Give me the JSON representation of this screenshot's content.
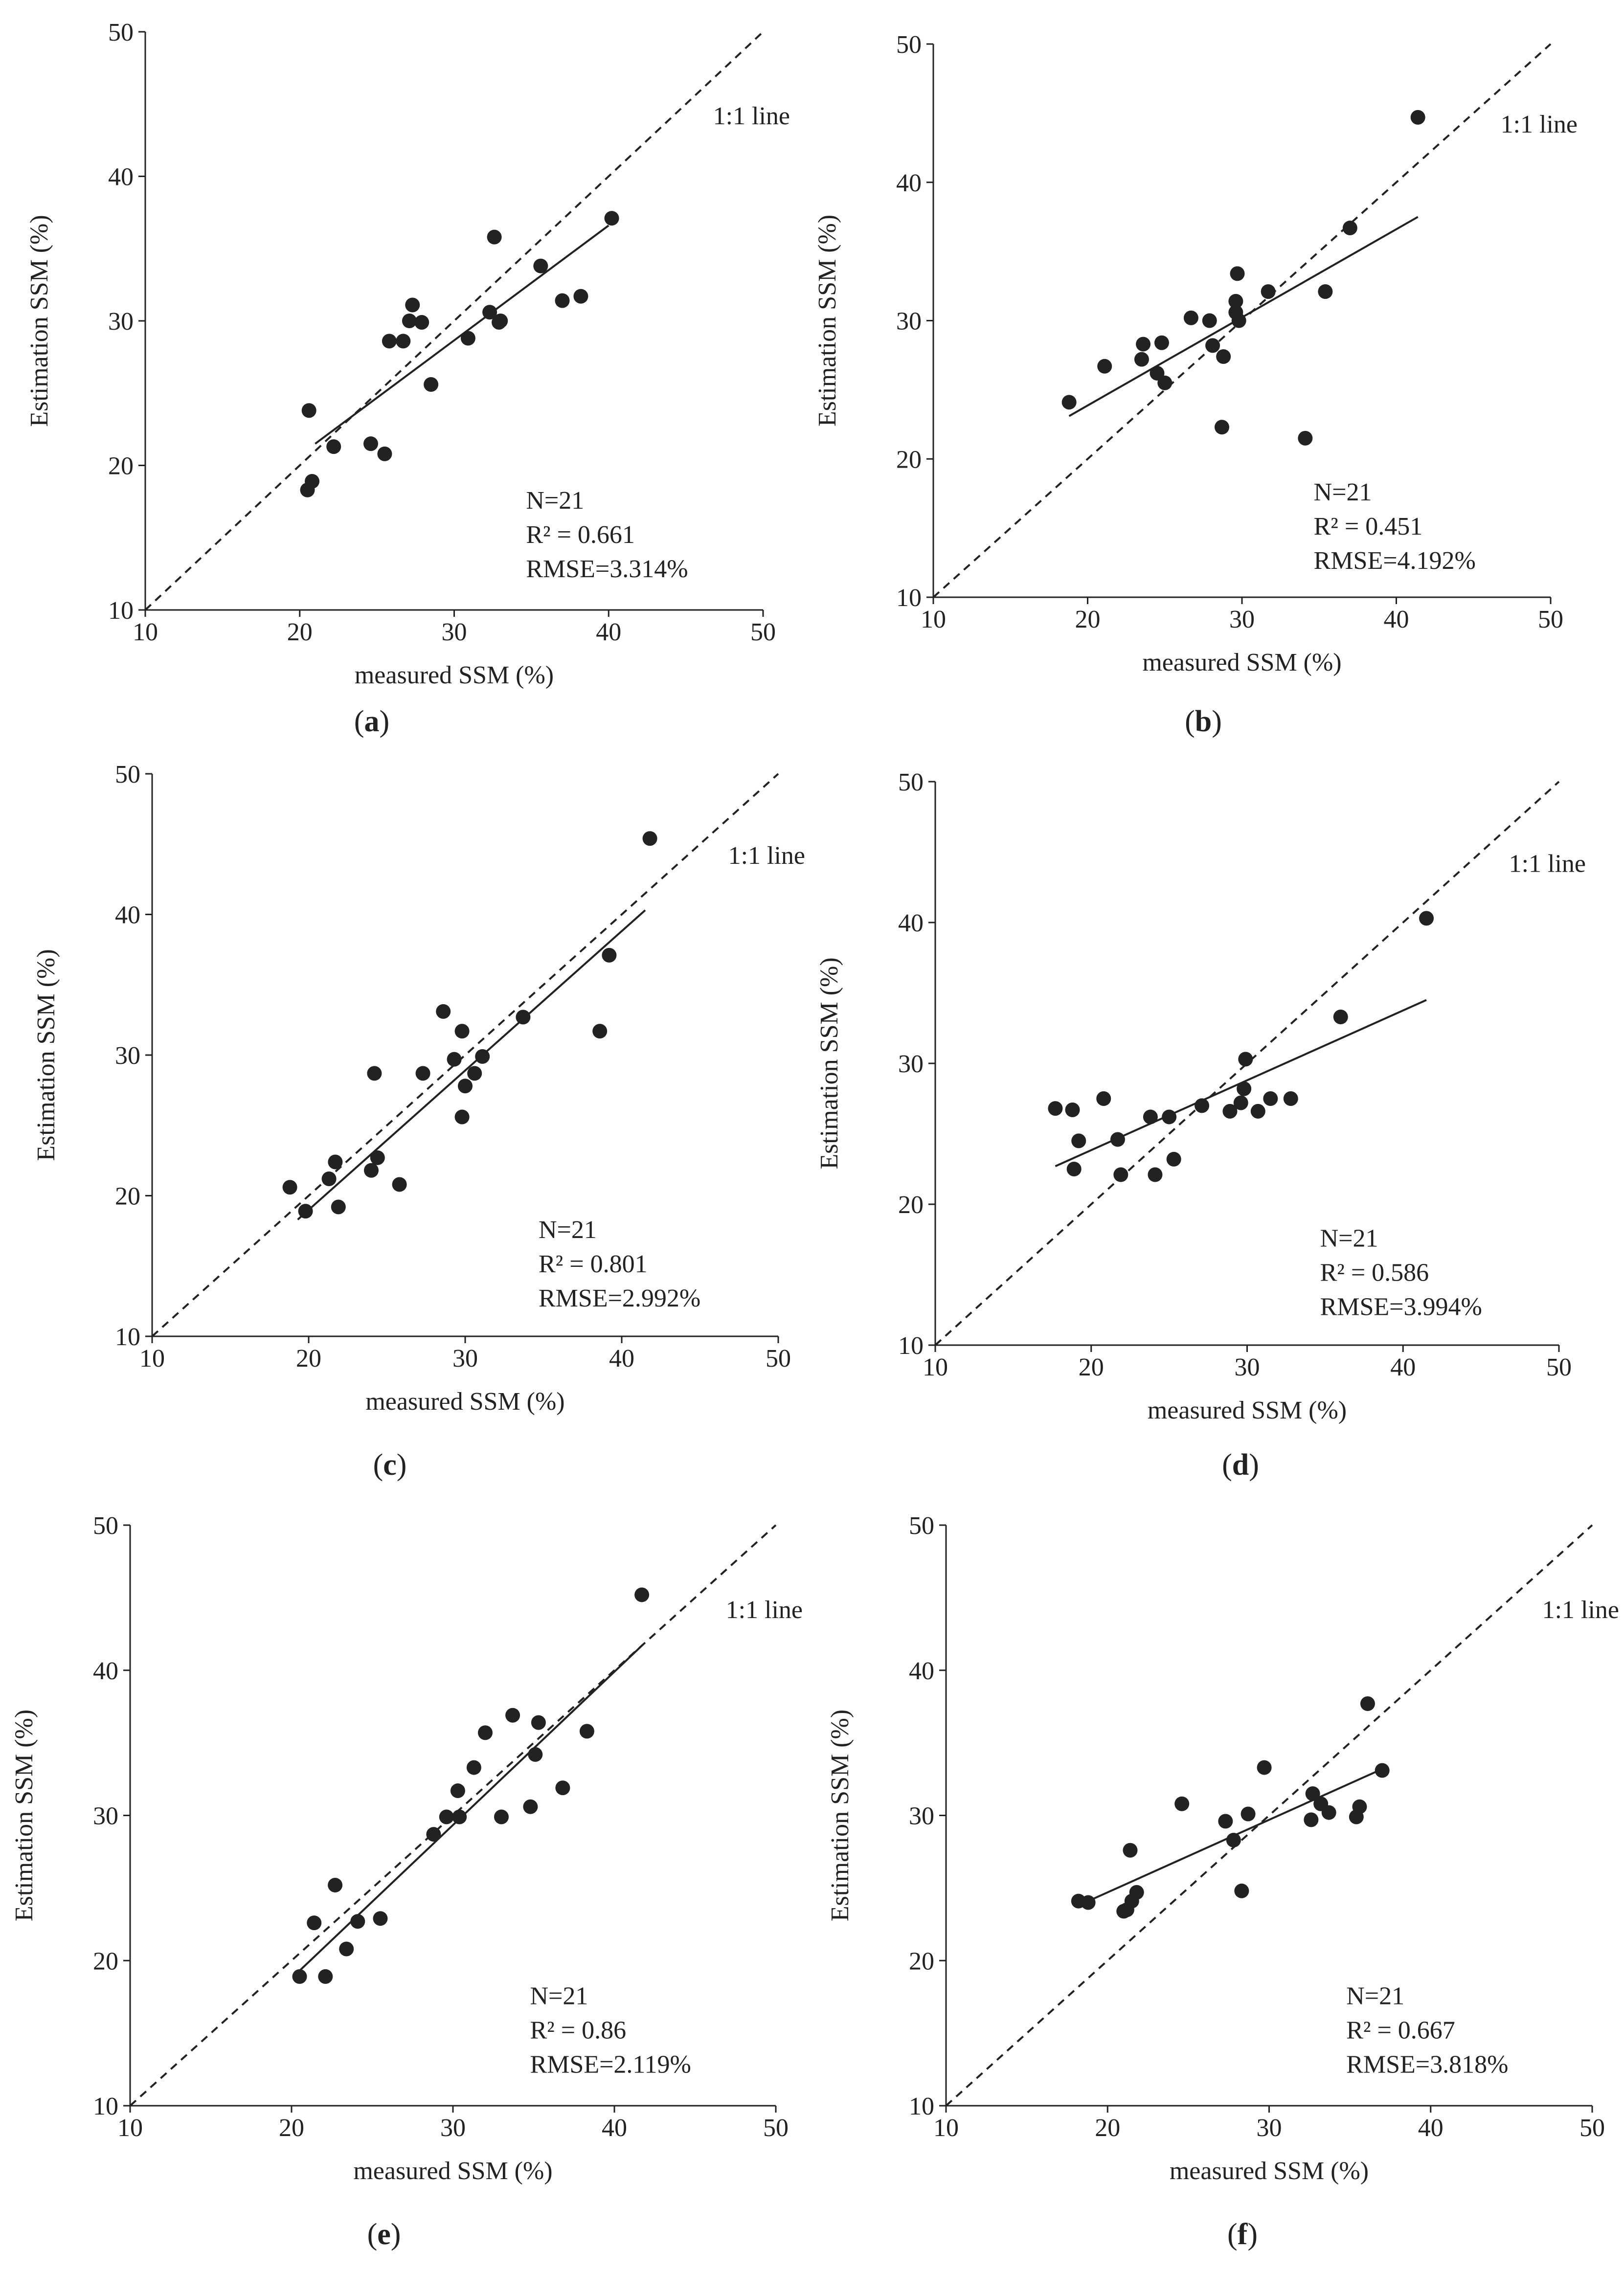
{
  "figure": {
    "colors": {
      "ink": "#222222",
      "background": "#ffffff"
    }
  },
  "chart_data": [
    {
      "id": "a",
      "type": "scatter",
      "panel_label": "a",
      "xlabel": "measured SSM (%)",
      "ylabel": "Estimation SSM (%)",
      "xlim": [
        10,
        50
      ],
      "ylim": [
        10,
        50
      ],
      "xticks": [
        10,
        20,
        30,
        40,
        50
      ],
      "yticks": [
        10,
        20,
        30,
        40,
        50
      ],
      "one_to_one_label": "1:1 line",
      "stats": [
        "N=21",
        "R² = 0.661",
        "RMSE=3.314%"
      ],
      "points": [
        [
          20.6,
          23.8
        ],
        [
          20.5,
          18.3
        ],
        [
          20.8,
          18.9
        ],
        [
          22.2,
          21.3
        ],
        [
          24.6,
          21.5
        ],
        [
          25.5,
          20.8
        ],
        [
          25.8,
          28.6
        ],
        [
          26.7,
          28.6
        ],
        [
          27.1,
          30.0
        ],
        [
          27.3,
          31.1
        ],
        [
          27.9,
          29.9
        ],
        [
          28.5,
          25.6
        ],
        [
          30.9,
          28.8
        ],
        [
          32.3,
          30.6
        ],
        [
          32.6,
          35.8
        ],
        [
          32.9,
          29.9
        ],
        [
          35.6,
          33.8
        ],
        [
          37.0,
          31.4
        ],
        [
          38.2,
          31.7
        ],
        [
          40.2,
          37.1
        ],
        [
          33.0,
          30.0
        ]
      ],
      "fit": {
        "x0": 21.0,
        "y0": 21.5,
        "x1": 40.0,
        "y1": 36.6
      }
    },
    {
      "id": "b",
      "type": "scatter",
      "panel_label": "b",
      "xlabel": "measured SSM (%)",
      "ylabel": "Estimation SSM (%)",
      "xlim": [
        10,
        50
      ],
      "ylim": [
        10,
        50
      ],
      "xticks": [
        10,
        20,
        30,
        40,
        50
      ],
      "yticks": [
        10,
        20,
        30,
        40,
        50
      ],
      "one_to_one_label": "1:1 line",
      "stats": [
        "N=21",
        "R² = 0.451",
        "RMSE=4.192%"
      ],
      "points": [
        [
          18.8,
          24.1
        ],
        [
          21.1,
          26.7
        ],
        [
          23.5,
          27.2
        ],
        [
          23.6,
          28.3
        ],
        [
          24.5,
          26.2
        ],
        [
          24.8,
          28.4
        ],
        [
          25.0,
          25.5
        ],
        [
          26.7,
          30.2
        ],
        [
          27.9,
          30.0
        ],
        [
          28.1,
          28.2
        ],
        [
          28.7,
          22.3
        ],
        [
          28.8,
          27.4
        ],
        [
          29.6,
          31.4
        ],
        [
          29.6,
          30.6
        ],
        [
          29.7,
          33.4
        ],
        [
          29.8,
          30.0
        ],
        [
          31.7,
          32.1
        ],
        [
          34.1,
          21.5
        ],
        [
          35.4,
          32.1
        ],
        [
          37.0,
          36.7
        ],
        [
          41.4,
          44.7
        ]
      ],
      "fit": {
        "x0": 18.8,
        "y0": 23.1,
        "x1": 41.4,
        "y1": 37.5
      }
    },
    {
      "id": "c",
      "type": "scatter",
      "panel_label": "c",
      "xlabel": "measured SSM (%)",
      "ylabel": "Estimation SSM (%)",
      "xlim": [
        10,
        50
      ],
      "ylim": [
        10,
        50
      ],
      "xticks": [
        10,
        20,
        30,
        40,
        50
      ],
      "yticks": [
        10,
        20,
        30,
        40,
        50
      ],
      "one_to_one_label": "1:1 line",
      "stats": [
        "N=21",
        "R² = 0.801",
        "RMSE=2.992%"
      ],
      "points": [
        [
          18.8,
          20.6
        ],
        [
          19.8,
          18.9
        ],
        [
          21.3,
          21.2
        ],
        [
          21.7,
          22.4
        ],
        [
          21.9,
          19.2
        ],
        [
          24.0,
          21.8
        ],
        [
          24.2,
          28.7
        ],
        [
          24.4,
          22.7
        ],
        [
          25.8,
          20.8
        ],
        [
          27.3,
          28.7
        ],
        [
          28.6,
          33.1
        ],
        [
          29.3,
          29.7
        ],
        [
          29.8,
          31.7
        ],
        [
          29.8,
          25.6
        ],
        [
          30.0,
          27.8
        ],
        [
          30.6,
          28.7
        ],
        [
          31.1,
          29.9
        ],
        [
          33.7,
          32.7
        ],
        [
          38.6,
          31.7
        ],
        [
          39.2,
          37.1
        ],
        [
          41.8,
          45.4
        ]
      ],
      "fit": {
        "x0": 19.3,
        "y0": 18.3,
        "x1": 41.5,
        "y1": 40.3
      }
    },
    {
      "id": "d",
      "type": "scatter",
      "panel_label": "d",
      "xlabel": "measured SSM (%)",
      "ylabel": "Estimation SSM (%)",
      "xlim": [
        10,
        50
      ],
      "ylim": [
        10,
        50
      ],
      "xticks": [
        10,
        20,
        30,
        40,
        50
      ],
      "yticks": [
        10,
        20,
        30,
        40,
        50
      ],
      "one_to_one_label": "1:1 line",
      "stats": [
        "N=21",
        "R² = 0.586",
        "RMSE=3.994%"
      ],
      "points": [
        [
          17.7,
          26.8
        ],
        [
          18.8,
          26.7
        ],
        [
          18.9,
          22.5
        ],
        [
          19.2,
          24.5
        ],
        [
          20.8,
          27.5
        ],
        [
          21.7,
          24.6
        ],
        [
          21.9,
          22.1
        ],
        [
          23.8,
          26.2
        ],
        [
          24.1,
          22.1
        ],
        [
          25.0,
          26.2
        ],
        [
          25.3,
          23.2
        ],
        [
          27.1,
          27.0
        ],
        [
          28.9,
          26.6
        ],
        [
          29.6,
          27.2
        ],
        [
          29.8,
          28.2
        ],
        [
          29.9,
          30.3
        ],
        [
          30.7,
          26.6
        ],
        [
          31.5,
          27.5
        ],
        [
          32.8,
          27.5
        ],
        [
          36.0,
          33.3
        ],
        [
          41.5,
          40.3
        ]
      ],
      "fit": {
        "x0": 17.7,
        "y0": 22.7,
        "x1": 41.5,
        "y1": 34.5
      }
    },
    {
      "id": "e",
      "type": "scatter",
      "panel_label": "e",
      "xlabel": "measured SSM (%)",
      "ylabel": "Estimation SSM (%)",
      "xlim": [
        10,
        50
      ],
      "ylim": [
        10,
        50
      ],
      "xticks": [
        10,
        20,
        30,
        40,
        50
      ],
      "yticks": [
        10,
        20,
        30,
        40,
        50
      ],
      "one_to_one_label": "1:1 line",
      "stats": [
        "N=21",
        "R² = 0.86",
        "RMSE=2.119%"
      ],
      "points": [
        [
          20.5,
          18.9
        ],
        [
          21.4,
          22.6
        ],
        [
          22.1,
          18.9
        ],
        [
          22.7,
          25.2
        ],
        [
          23.4,
          20.8
        ],
        [
          24.1,
          22.7
        ],
        [
          25.5,
          22.9
        ],
        [
          28.8,
          28.7
        ],
        [
          29.6,
          29.9
        ],
        [
          30.3,
          31.7
        ],
        [
          30.4,
          29.9
        ],
        [
          31.3,
          33.3
        ],
        [
          32.0,
          35.7
        ],
        [
          33.0,
          29.9
        ],
        [
          33.7,
          36.9
        ],
        [
          34.8,
          30.6
        ],
        [
          35.1,
          34.2
        ],
        [
          35.3,
          36.4
        ],
        [
          36.8,
          31.9
        ],
        [
          38.3,
          35.8
        ],
        [
          41.7,
          45.2
        ]
      ],
      "fit": {
        "x0": 20.4,
        "y0": 19.2,
        "x1": 41.8,
        "y1": 41.8
      }
    },
    {
      "id": "f",
      "type": "scatter",
      "panel_label": "f",
      "xlabel": "measured SSM (%)",
      "ylabel": "Estimation SSM (%)",
      "xlim": [
        10,
        50
      ],
      "ylim": [
        10,
        50
      ],
      "xticks": [
        10,
        20,
        30,
        40,
        50
      ],
      "yticks": [
        10,
        20,
        30,
        40,
        50
      ],
      "one_to_one_label": "1:1 line",
      "stats": [
        "N=21",
        "R² = 0.667",
        "RMSE=3.818%"
      ],
      "points": [
        [
          18.2,
          24.1
        ],
        [
          18.8,
          24.0
        ],
        [
          21.0,
          23.4
        ],
        [
          21.2,
          23.5
        ],
        [
          21.4,
          27.6
        ],
        [
          21.5,
          24.1
        ],
        [
          21.8,
          24.7
        ],
        [
          24.6,
          30.8
        ],
        [
          27.3,
          29.6
        ],
        [
          27.8,
          28.3
        ],
        [
          28.3,
          24.8
        ],
        [
          28.7,
          30.1
        ],
        [
          29.7,
          33.3
        ],
        [
          32.6,
          29.7
        ],
        [
          32.7,
          31.5
        ],
        [
          33.2,
          30.8
        ],
        [
          33.7,
          30.2
        ],
        [
          35.4,
          29.9
        ],
        [
          35.6,
          30.6
        ],
        [
          36.1,
          37.7
        ],
        [
          37.0,
          33.1
        ]
      ],
      "fit": {
        "x0": 18.6,
        "y0": 24.0,
        "x1": 37.0,
        "y1": 33.2
      }
    }
  ]
}
